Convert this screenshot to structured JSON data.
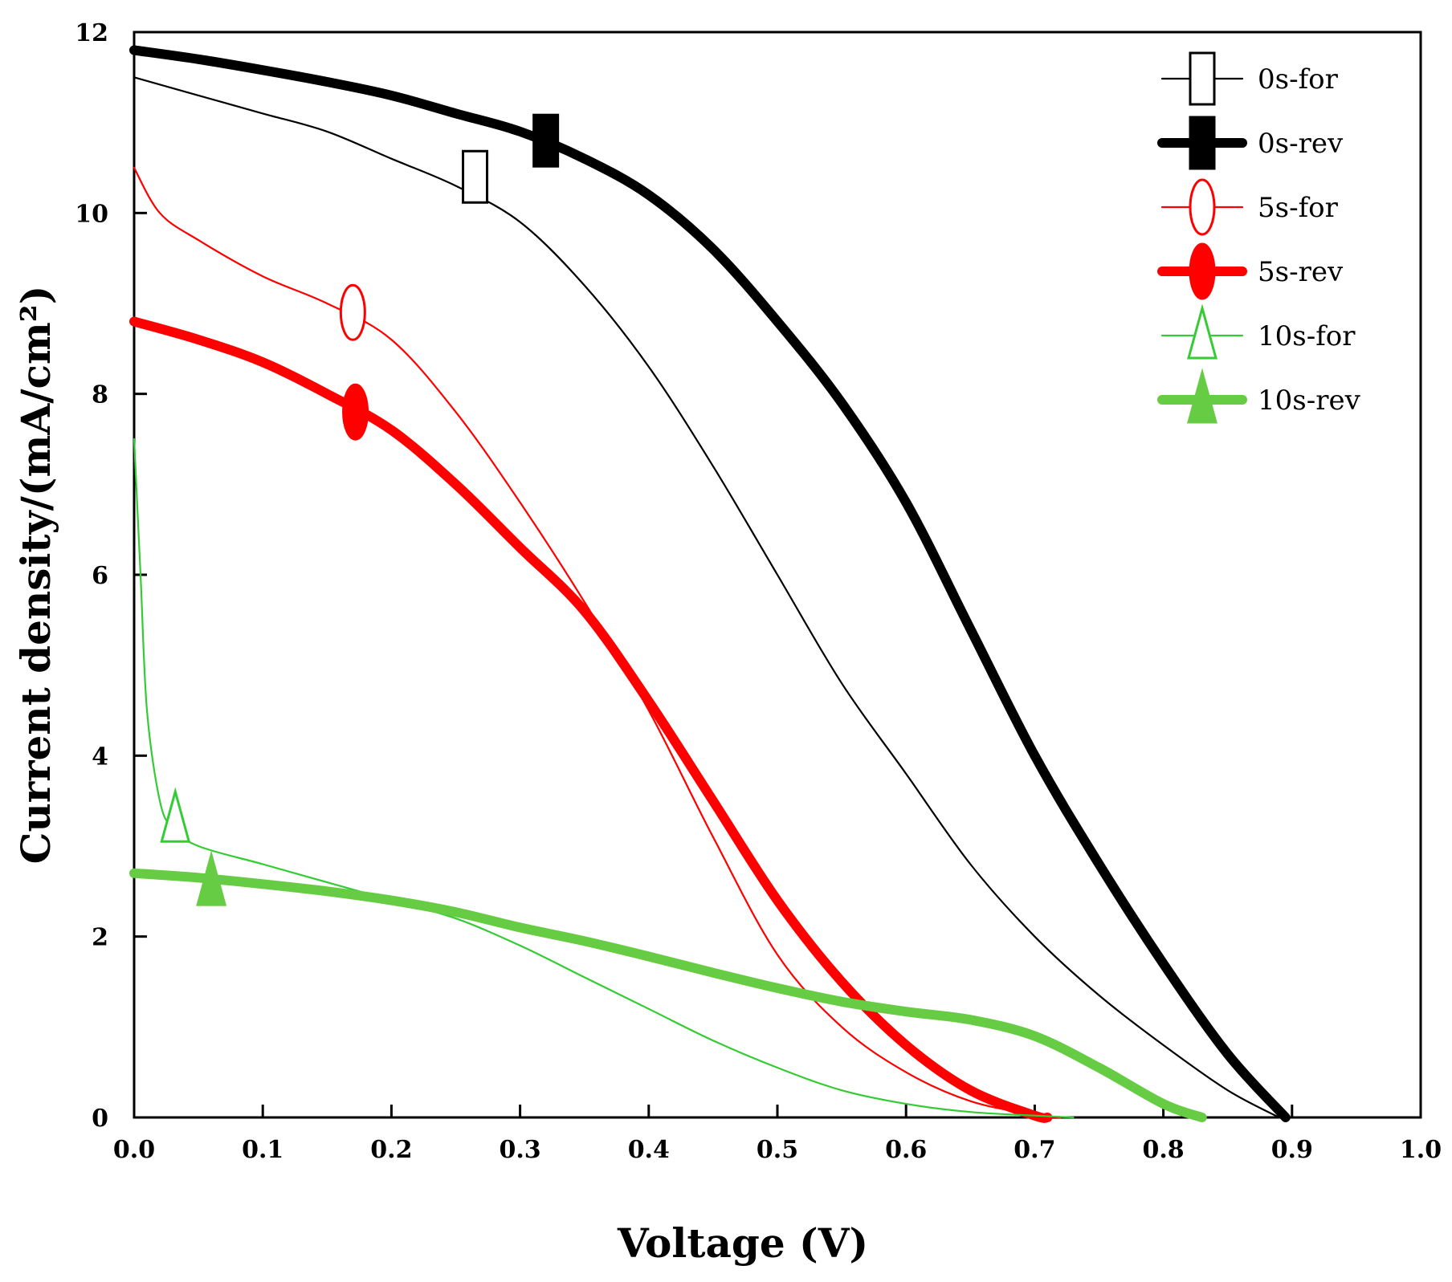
{
  "chart_data": {
    "type": "line",
    "title": "",
    "xlabel": "Voltage (V)",
    "ylabel": "Current density/(mA/cm²)",
    "xlim": [
      0,
      1.0
    ],
    "ylim": [
      0,
      12
    ],
    "x_ticks": [
      "0.0",
      "0.1",
      "0.2",
      "0.3",
      "0.4",
      "0.5",
      "0.6",
      "0.7",
      "0.8",
      "0.9",
      "1.0"
    ],
    "y_ticks": [
      "0",
      "2",
      "4",
      "6",
      "8",
      "10",
      "12"
    ],
    "grid": false,
    "legend_position": "top-right",
    "series": [
      {
        "name": "0s-for",
        "color": "#000000",
        "line": "thin",
        "marker": "square-open",
        "marker_at": [
          0.265,
          10.4
        ],
        "points": [
          [
            0.0,
            11.5
          ],
          [
            0.05,
            11.3
          ],
          [
            0.1,
            11.1
          ],
          [
            0.15,
            10.9
          ],
          [
            0.2,
            10.6
          ],
          [
            0.25,
            10.3
          ],
          [
            0.3,
            9.9
          ],
          [
            0.35,
            9.2
          ],
          [
            0.4,
            8.3
          ],
          [
            0.45,
            7.2
          ],
          [
            0.5,
            6.0
          ],
          [
            0.55,
            4.8
          ],
          [
            0.6,
            3.8
          ],
          [
            0.65,
            2.8
          ],
          [
            0.7,
            2.0
          ],
          [
            0.75,
            1.35
          ],
          [
            0.8,
            0.8
          ],
          [
            0.85,
            0.3
          ],
          [
            0.89,
            0.0
          ]
        ]
      },
      {
        "name": "0s-rev",
        "color": "#000000",
        "line": "thick",
        "marker": "square-filled",
        "marker_at": [
          0.32,
          10.8
        ],
        "points": [
          [
            0.0,
            11.8
          ],
          [
            0.05,
            11.7
          ],
          [
            0.1,
            11.58
          ],
          [
            0.15,
            11.45
          ],
          [
            0.2,
            11.3
          ],
          [
            0.25,
            11.1
          ],
          [
            0.3,
            10.9
          ],
          [
            0.35,
            10.6
          ],
          [
            0.4,
            10.2
          ],
          [
            0.45,
            9.6
          ],
          [
            0.5,
            8.8
          ],
          [
            0.55,
            7.9
          ],
          [
            0.6,
            6.8
          ],
          [
            0.65,
            5.4
          ],
          [
            0.7,
            4.0
          ],
          [
            0.75,
            2.8
          ],
          [
            0.8,
            1.7
          ],
          [
            0.85,
            0.7
          ],
          [
            0.895,
            0.0
          ]
        ]
      },
      {
        "name": "5s-for",
        "color": "#ff0000",
        "line": "thin",
        "marker": "circle-open",
        "marker_at": [
          0.17,
          8.9
        ],
        "points": [
          [
            0.0,
            10.5
          ],
          [
            0.02,
            10.0
          ],
          [
            0.05,
            9.7
          ],
          [
            0.1,
            9.3
          ],
          [
            0.15,
            9.0
          ],
          [
            0.2,
            8.6
          ],
          [
            0.25,
            7.8
          ],
          [
            0.3,
            6.8
          ],
          [
            0.35,
            5.7
          ],
          [
            0.4,
            4.5
          ],
          [
            0.45,
            3.1
          ],
          [
            0.5,
            1.8
          ],
          [
            0.55,
            1.0
          ],
          [
            0.6,
            0.5
          ],
          [
            0.65,
            0.18
          ],
          [
            0.7,
            0.03
          ],
          [
            0.72,
            0.0
          ]
        ]
      },
      {
        "name": "5s-rev",
        "color": "#ff0000",
        "line": "thick",
        "marker": "circle-filled",
        "marker_at": [
          0.172,
          7.8
        ],
        "points": [
          [
            0.0,
            8.8
          ],
          [
            0.05,
            8.6
          ],
          [
            0.1,
            8.35
          ],
          [
            0.15,
            8.0
          ],
          [
            0.2,
            7.6
          ],
          [
            0.25,
            7.0
          ],
          [
            0.3,
            6.3
          ],
          [
            0.35,
            5.6
          ],
          [
            0.4,
            4.6
          ],
          [
            0.45,
            3.5
          ],
          [
            0.5,
            2.4
          ],
          [
            0.55,
            1.5
          ],
          [
            0.6,
            0.8
          ],
          [
            0.65,
            0.3
          ],
          [
            0.7,
            0.02
          ],
          [
            0.71,
            0.0
          ]
        ]
      },
      {
        "name": "10s-for",
        "color": "#33cc33",
        "line": "thin",
        "marker": "triangle-open",
        "marker_at": [
          0.032,
          3.3
        ],
        "points": [
          [
            0.0,
            7.5
          ],
          [
            0.005,
            6.0
          ],
          [
            0.01,
            4.5
          ],
          [
            0.02,
            3.5
          ],
          [
            0.03,
            3.2
          ],
          [
            0.05,
            3.0
          ],
          [
            0.1,
            2.8
          ],
          [
            0.15,
            2.6
          ],
          [
            0.2,
            2.4
          ],
          [
            0.25,
            2.2
          ],
          [
            0.3,
            1.9
          ],
          [
            0.35,
            1.55
          ],
          [
            0.4,
            1.2
          ],
          [
            0.45,
            0.85
          ],
          [
            0.5,
            0.55
          ],
          [
            0.55,
            0.3
          ],
          [
            0.6,
            0.15
          ],
          [
            0.65,
            0.06
          ],
          [
            0.7,
            0.02
          ],
          [
            0.73,
            0.0
          ]
        ]
      },
      {
        "name": "10s-rev",
        "color": "#66cc44",
        "line": "thick",
        "marker": "triangle-filled",
        "marker_at": [
          0.06,
          2.6
        ],
        "points": [
          [
            0.0,
            2.7
          ],
          [
            0.05,
            2.65
          ],
          [
            0.1,
            2.58
          ],
          [
            0.15,
            2.5
          ],
          [
            0.2,
            2.4
          ],
          [
            0.25,
            2.27
          ],
          [
            0.3,
            2.1
          ],
          [
            0.35,
            1.95
          ],
          [
            0.4,
            1.78
          ],
          [
            0.45,
            1.6
          ],
          [
            0.5,
            1.43
          ],
          [
            0.55,
            1.28
          ],
          [
            0.6,
            1.17
          ],
          [
            0.65,
            1.08
          ],
          [
            0.7,
            0.9
          ],
          [
            0.75,
            0.55
          ],
          [
            0.8,
            0.15
          ],
          [
            0.83,
            0.0
          ]
        ]
      }
    ]
  }
}
